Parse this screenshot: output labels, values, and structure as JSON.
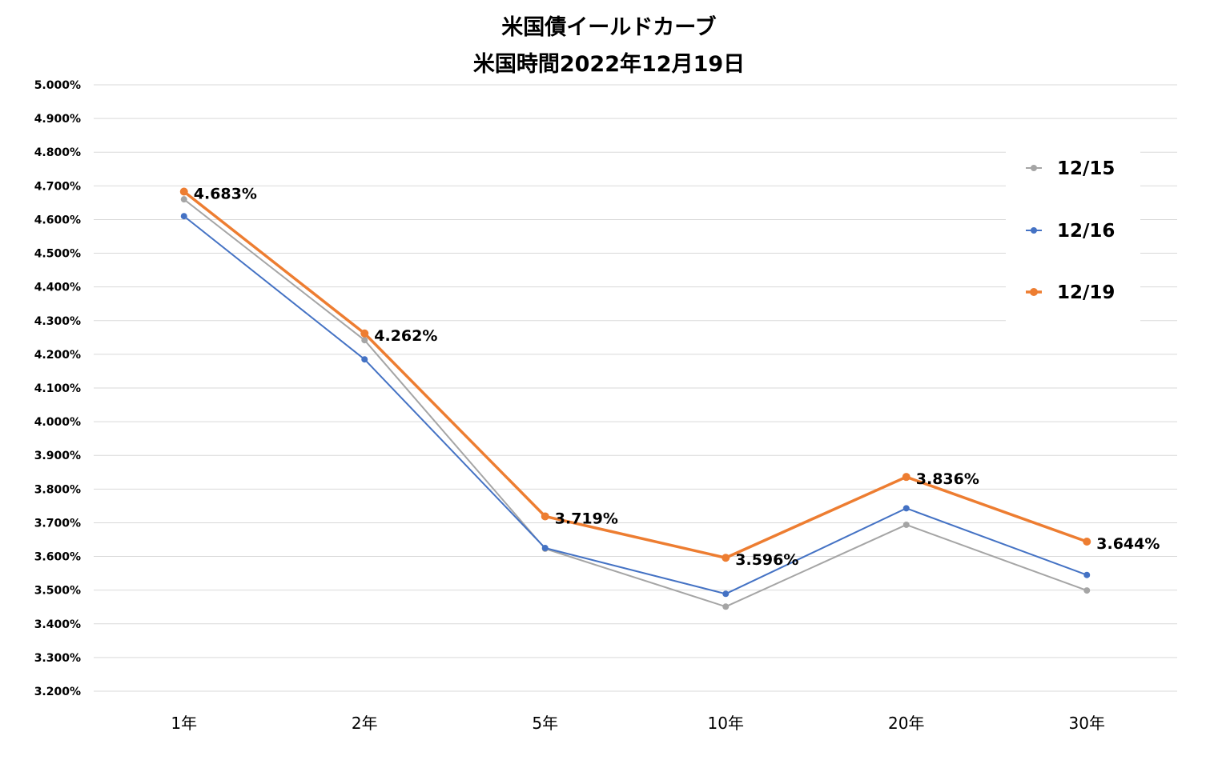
{
  "chart_data": {
    "type": "line",
    "title": "米国債イールドカーブ",
    "subtitle": "米国時間2022年12月19日",
    "categories": [
      "1年",
      "2年",
      "5年",
      "10年",
      "20年",
      "30年"
    ],
    "y_ticks": [
      "3.200%",
      "3.300%",
      "3.400%",
      "3.500%",
      "3.600%",
      "3.700%",
      "3.800%",
      "3.900%",
      "4.000%",
      "4.100%",
      "4.200%",
      "4.300%",
      "4.400%",
      "4.500%",
      "4.600%",
      "4.700%",
      "4.800%",
      "4.900%",
      "5.000%"
    ],
    "ylim": [
      3.2,
      5.0
    ],
    "grid": true,
    "legend_position": "right",
    "series": [
      {
        "name": "12/15",
        "color": "#A5A5A5",
        "values": [
          4.66,
          4.242,
          3.623,
          3.451,
          3.694,
          3.499
        ],
        "labels": []
      },
      {
        "name": "12/16",
        "color": "#4472C4",
        "values": [
          4.61,
          4.185,
          3.625,
          3.489,
          3.743,
          3.545
        ],
        "labels": []
      },
      {
        "name": "12/19",
        "color": "#ED7D31",
        "values": [
          4.683,
          4.262,
          3.719,
          3.596,
          3.836,
          3.644
        ],
        "labels": [
          "4.683%",
          "4.262%",
          "3.719%",
          "3.596%",
          "3.836%",
          "3.644%"
        ]
      }
    ]
  }
}
